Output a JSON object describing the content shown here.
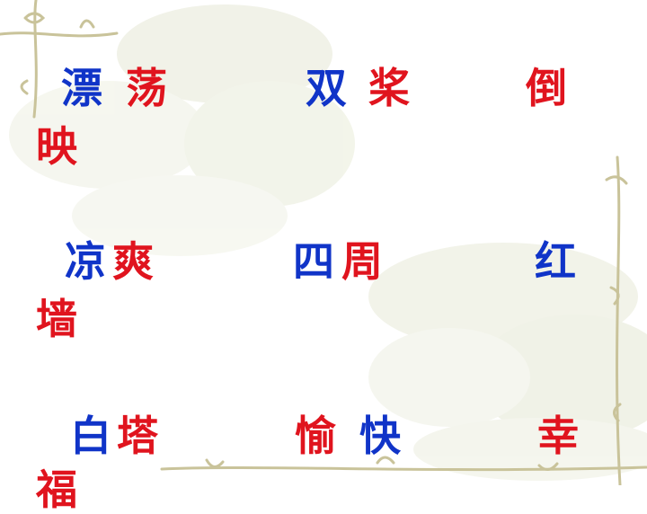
{
  "colors": {
    "blue": "#1034c8",
    "red": "#e0141e",
    "vine": "#c9c39a",
    "flower": "#d9dcc6"
  },
  "decoration": {
    "background_icon": "faint-flower-watermark-icon",
    "border_icon": "vine-border-icon"
  },
  "rows": [
    [
      {
        "id": "piao",
        "char": "漂",
        "color": "blue"
      },
      {
        "id": "dang",
        "char": "荡",
        "color": "red"
      },
      {
        "id": "shuang",
        "char": "双",
        "color": "blue"
      },
      {
        "id": "jiang",
        "char": "桨",
        "color": "red"
      },
      {
        "id": "dao",
        "char": "倒",
        "color": "red"
      },
      {
        "id": "ying",
        "char": "映",
        "color": "red"
      }
    ],
    [
      {
        "id": "liang",
        "char": "凉",
        "color": "blue"
      },
      {
        "id": "shuang2",
        "char": "爽",
        "color": "red"
      },
      {
        "id": "si",
        "char": "四",
        "color": "blue"
      },
      {
        "id": "zhou",
        "char": "周",
        "color": "red"
      },
      {
        "id": "hong",
        "char": "红",
        "color": "blue"
      },
      {
        "id": "qiang",
        "char": "墙",
        "color": "red"
      }
    ],
    [
      {
        "id": "bai",
        "char": "白",
        "color": "blue"
      },
      {
        "id": "ta",
        "char": "塔",
        "color": "red"
      },
      {
        "id": "yu",
        "char": "愉",
        "color": "red"
      },
      {
        "id": "kuai",
        "char": "快",
        "color": "blue"
      },
      {
        "id": "xing",
        "char": "幸",
        "color": "red"
      },
      {
        "id": "fu",
        "char": "福",
        "color": "red"
      }
    ]
  ]
}
